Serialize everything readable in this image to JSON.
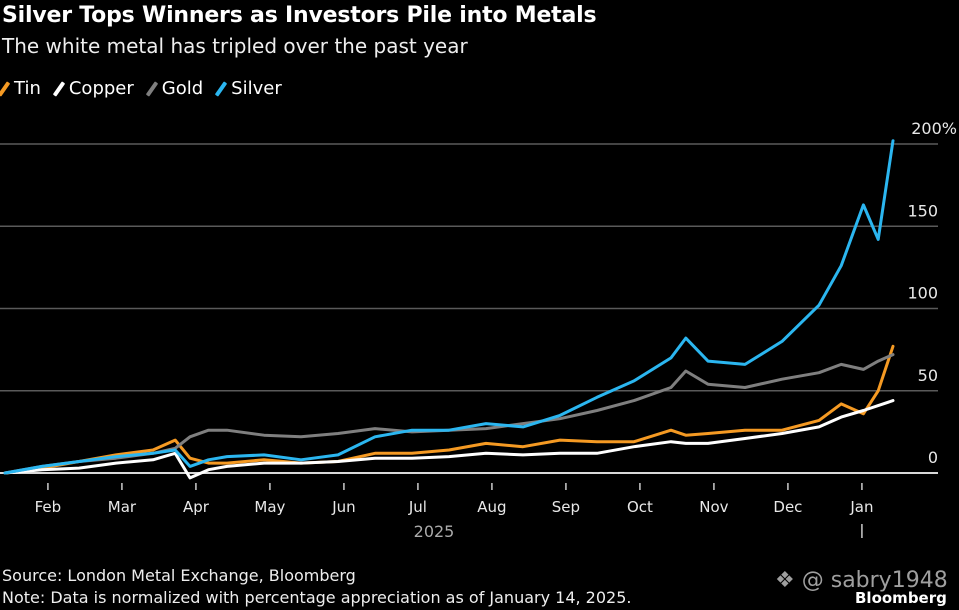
{
  "chart_data": {
    "type": "line",
    "title": "Silver Tops Winners as Investors Pile into Metals",
    "subtitle": "The white metal has tripled over the past year",
    "xlabel": "",
    "ylabel": "",
    "year_label": "2025",
    "ylim": [
      0,
      200
    ],
    "y_ticks": [
      0,
      50,
      100,
      150,
      200
    ],
    "y_tick_labels": [
      "0",
      "50",
      "100",
      "150",
      "200%"
    ],
    "x_tick_labels": [
      "Feb",
      "Mar",
      "Apr",
      "May",
      "Jun",
      "Jul",
      "Aug",
      "Sep",
      "Oct",
      "Nov",
      "Dec",
      "Jan"
    ],
    "grid": true,
    "legend_position": "top-left",
    "x": [
      0,
      0.5,
      1,
      1.5,
      2,
      2.3,
      2.5,
      2.75,
      3,
      3.5,
      4,
      4.5,
      5,
      5.5,
      6,
      6.5,
      7,
      7.5,
      8,
      8.5,
      9,
      9.2,
      9.5,
      10,
      10.5,
      11,
      11.3,
      11.6,
      11.8,
      12
    ],
    "x_unit": "months since Jan 14, 2025",
    "series": [
      {
        "name": "Tin",
        "color": "#f59a23",
        "values": [
          0,
          3,
          7,
          11,
          14,
          20,
          9,
          6,
          6,
          8,
          6,
          7,
          12,
          12,
          14,
          18,
          16,
          20,
          19,
          19,
          26,
          23,
          24,
          26,
          26,
          32,
          42,
          36,
          50,
          77
        ]
      },
      {
        "name": "Copper",
        "color": "#ffffff",
        "values": [
          0,
          2,
          3,
          6,
          8,
          12,
          -3,
          2,
          4,
          6,
          6,
          7,
          9,
          9,
          10,
          12,
          11,
          12,
          12,
          16,
          19,
          18,
          18,
          21,
          24,
          28,
          34,
          38,
          41,
          44
        ]
      },
      {
        "name": "Gold",
        "color": "#7f7f7f",
        "values": [
          0,
          4,
          7,
          9,
          12,
          15,
          22,
          26,
          26,
          23,
          22,
          24,
          27,
          25,
          26,
          27,
          30,
          33,
          38,
          44,
          52,
          62,
          54,
          52,
          57,
          61,
          66,
          63,
          68,
          72
        ]
      },
      {
        "name": "Silver",
        "color": "#2bb6f0",
        "values": [
          0,
          4,
          7,
          10,
          12,
          14,
          4,
          8,
          10,
          11,
          8,
          11,
          22,
          26,
          26,
          30,
          28,
          35,
          46,
          56,
          70,
          82,
          68,
          66,
          80,
          102,
          126,
          163,
          142,
          202
        ]
      }
    ]
  },
  "footer": {
    "source": "Source: London Metal Exchange, Bloomberg",
    "note": "Note: Data is normalized with percentage appreciation as of January 14, 2025.",
    "brand": "Bloomberg",
    "watermark": "@ sabry1948"
  }
}
